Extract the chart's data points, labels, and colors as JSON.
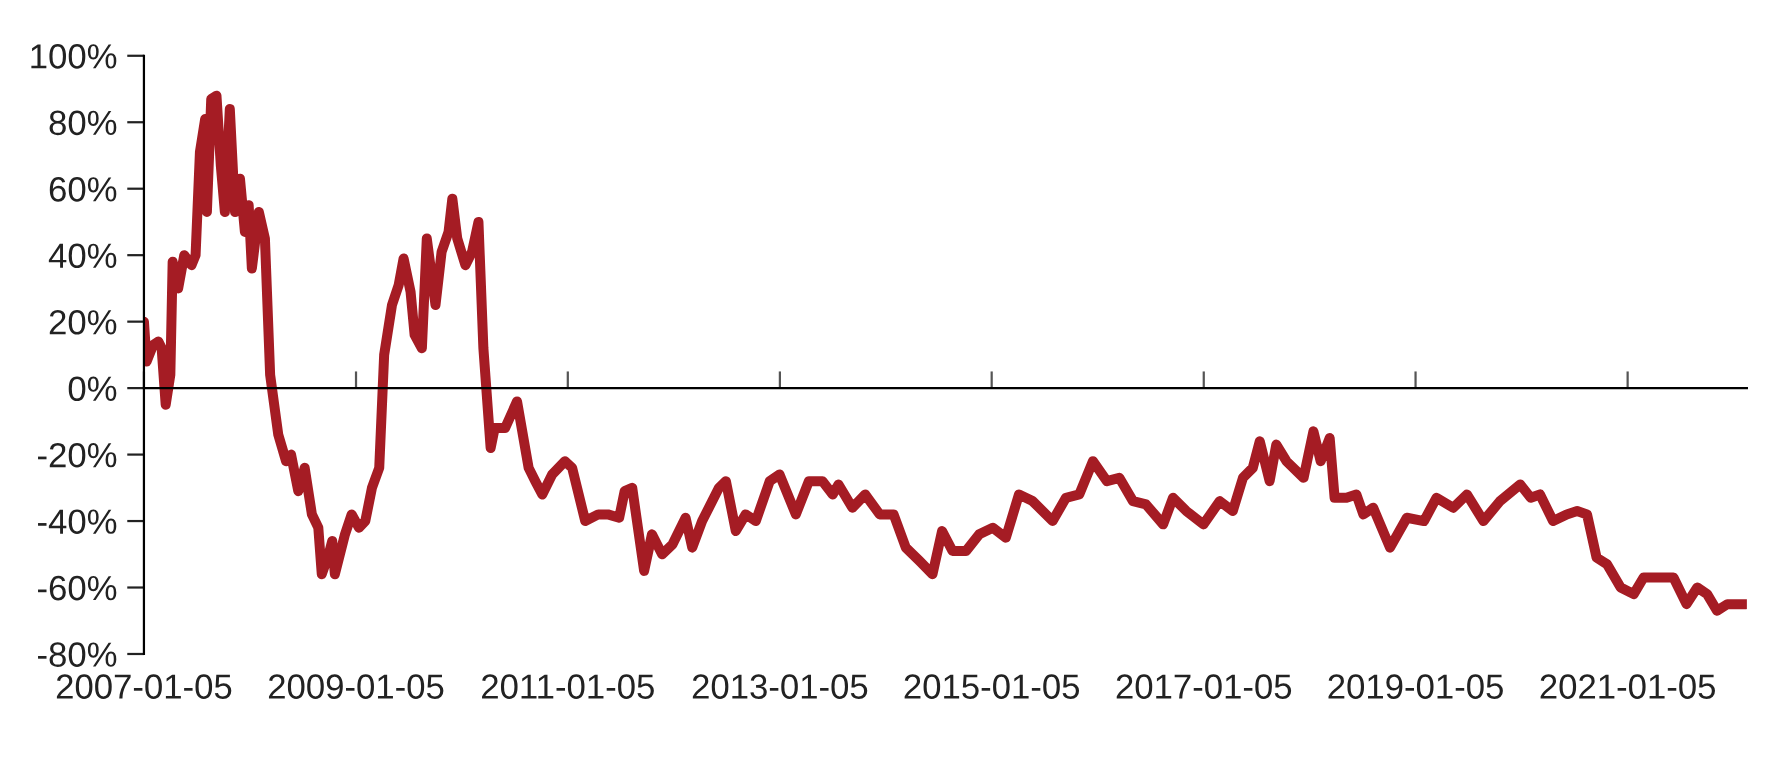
{
  "chart_data": {
    "type": "line",
    "xlim": [
      "2007-01-05",
      "2022-02-20"
    ],
    "ylim": [
      -80,
      100
    ],
    "xticks": [
      "2007-01-05",
      "2009-01-05",
      "2011-01-05",
      "2013-01-05",
      "2015-01-05",
      "2017-01-05",
      "2019-01-05",
      "2021-01-05"
    ],
    "yticks": [
      {
        "value": -80,
        "label": "-80%"
      },
      {
        "value": -60,
        "label": "-60%"
      },
      {
        "value": -40,
        "label": "-40%"
      },
      {
        "value": -20,
        "label": "-20%"
      },
      {
        "value": 0,
        "label": "0%"
      },
      {
        "value": 20,
        "label": "20%"
      },
      {
        "value": 40,
        "label": "40%"
      },
      {
        "value": 60,
        "label": "60%"
      },
      {
        "value": 80,
        "label": "80%"
      },
      {
        "value": 100,
        "label": "100%"
      }
    ],
    "legend": false,
    "marker": "none",
    "line_style": "solid",
    "series": [
      {
        "color": "#a51c24",
        "x": [
          "2007-01-05",
          "2007-01-14",
          "2007-02-06",
          "2007-02-24",
          "2007-03-07",
          "2007-03-21",
          "2007-04-06",
          "2007-04-14",
          "2007-05-03",
          "2007-05-24",
          "2007-06-18",
          "2007-07-02",
          "2007-07-17",
          "2007-08-04",
          "2007-08-10",
          "2007-08-25",
          "2007-09-12",
          "2007-09-27",
          "2007-10-11",
          "2007-10-28",
          "2007-11-15",
          "2007-12-02",
          "2007-12-19",
          "2008-01-01",
          "2008-01-12",
          "2008-02-05",
          "2008-02-26",
          "2008-03-15",
          "2008-04-12",
          "2008-05-09",
          "2008-05-26",
          "2008-06-20",
          "2008-07-12",
          "2008-08-06",
          "2008-08-28",
          "2008-09-09",
          "2008-10-03",
          "2008-10-15",
          "2008-10-24",
          "2008-11-28",
          "2008-12-21",
          "2009-01-15",
          "2009-02-06",
          "2009-03-01",
          "2009-03-26",
          "2009-04-12",
          "2009-05-09",
          "2009-06-01",
          "2009-06-18",
          "2009-07-12",
          "2009-07-26",
          "2009-08-20",
          "2009-09-06",
          "2009-10-06",
          "2009-10-27",
          "2009-11-20",
          "2009-12-03",
          "2009-12-20",
          "2010-01-17",
          "2010-02-09",
          "2010-03-03",
          "2010-03-20",
          "2010-04-14",
          "2010-04-28",
          "2010-06-03",
          "2010-07-14",
          "2010-08-23",
          "2010-09-15",
          "2010-10-09",
          "2010-11-12",
          "2010-12-26",
          "2011-01-20",
          "2011-03-06",
          "2011-04-20",
          "2011-05-23",
          "2011-07-01",
          "2011-07-20",
          "2011-08-15",
          "2011-09-25",
          "2011-10-22",
          "2011-11-26",
          "2012-01-01",
          "2012-02-15",
          "2012-03-09",
          "2012-04-12",
          "2012-06-09",
          "2012-07-03",
          "2012-08-06",
          "2012-09-09",
          "2012-10-14",
          "2012-12-01",
          "2013-01-04",
          "2013-03-01",
          "2013-04-15",
          "2013-06-01",
          "2013-07-06",
          "2013-07-26",
          "2013-09-12",
          "2013-10-26",
          "2013-12-15",
          "2014-02-01",
          "2014-03-15",
          "2014-05-01",
          "2014-06-15",
          "2014-07-18",
          "2014-08-23",
          "2014-10-09",
          "2014-11-23",
          "2015-01-09",
          "2015-02-23",
          "2015-04-09",
          "2015-05-26",
          "2015-08-03",
          "2015-09-18",
          "2015-11-03",
          "2015-12-20",
          "2016-02-06",
          "2016-03-20",
          "2016-05-06",
          "2016-06-20",
          "2016-08-18",
          "2016-09-21",
          "2016-11-06",
          "2017-01-04",
          "2017-03-01",
          "2017-04-15",
          "2017-05-20",
          "2017-06-23",
          "2017-07-17",
          "2017-08-20",
          "2017-09-12",
          "2017-10-17",
          "2017-12-15",
          "2018-01-18",
          "2018-02-12",
          "2018-03-15",
          "2018-04-01",
          "2018-05-12",
          "2018-06-15",
          "2018-07-09",
          "2018-08-12",
          "2018-10-09",
          "2018-12-06",
          "2019-02-03",
          "2019-03-18",
          "2019-05-15",
          "2019-07-01",
          "2019-08-27",
          "2019-10-23",
          "2020-01-01",
          "2020-02-06",
          "2020-03-09",
          "2020-04-23",
          "2020-06-09",
          "2020-07-15",
          "2020-08-18",
          "2020-09-20",
          "2020-10-26",
          "2020-12-12",
          "2021-01-26",
          "2021-03-01",
          "2021-04-27",
          "2021-06-12",
          "2021-07-27",
          "2021-09-02",
          "2021-10-06",
          "2021-11-09",
          "2021-12-15",
          "2022-01-18",
          "2022-02-18"
        ],
        "values": [
          20,
          8,
          13,
          14,
          12,
          -5,
          4,
          38,
          30,
          40,
          37,
          40,
          71,
          81,
          53,
          87,
          88,
          67,
          53,
          84,
          53,
          63,
          47,
          55,
          36,
          53,
          45,
          4,
          -14,
          -22,
          -20,
          -31,
          -24,
          -38,
          -42,
          -56,
          -50,
          -46,
          -56,
          -44,
          -38,
          -42,
          -40,
          -30,
          -24,
          10,
          25,
          31,
          39,
          29,
          16,
          12,
          45,
          25,
          41,
          47,
          57,
          45,
          37,
          41,
          50,
          12,
          -18,
          -12,
          -12,
          -4,
          -24,
          -28,
          -32,
          -26,
          -22,
          -24,
          -40,
          -38,
          -38,
          -39,
          -31,
          -30,
          -55,
          -44,
          -50,
          -47,
          -39,
          -48,
          -40,
          -30,
          -28,
          -43,
          -38,
          -40,
          -28,
          -26,
          -38,
          -28,
          -28,
          -32,
          -29,
          -36,
          -32,
          -38,
          -38,
          -48,
          -52,
          -56,
          -43,
          -49,
          -49,
          -44,
          -42,
          -45,
          -32,
          -34,
          -40,
          -33,
          -32,
          -22,
          -28,
          -27,
          -34,
          -35,
          -41,
          -33,
          -37,
          -41,
          -34,
          -37,
          -27,
          -24,
          -16,
          -28,
          -17,
          -22,
          -27,
          -13,
          -22,
          -15,
          -33,
          -33,
          -32,
          -38,
          -36,
          -48,
          -39,
          -40,
          -33,
          -36,
          -32,
          -40,
          -34,
          -29,
          -33,
          -32,
          -40,
          -38,
          -37,
          -38,
          -51,
          -53,
          -60,
          -62,
          -57,
          -57,
          -57,
          -65,
          -60,
          -62,
          -67,
          -65,
          -65,
          -65
        ]
      }
    ]
  }
}
